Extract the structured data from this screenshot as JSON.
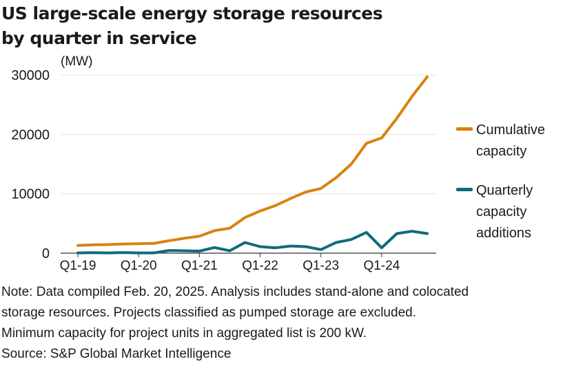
{
  "title": [
    "US large-scale energy storage resources",
    "by quarter in service"
  ],
  "unit": "(MW)",
  "colors": {
    "cumulative": "#d9820f",
    "quarterly": "#0f6b7a",
    "grid": "#e3e3e3",
    "axis": "#333333"
  },
  "chart_data": {
    "type": "line",
    "title": "US large-scale energy storage resources by quarter in service",
    "ylabel": "(MW)",
    "ylim": [
      0,
      30000
    ],
    "yticks": [
      0,
      10000,
      20000,
      30000
    ],
    "grid": "horizontal",
    "legend_position": "right",
    "x": [
      "Q1-19",
      "Q2-19",
      "Q3-19",
      "Q4-19",
      "Q1-20",
      "Q2-20",
      "Q3-20",
      "Q4-20",
      "Q1-21",
      "Q2-21",
      "Q3-21",
      "Q4-21",
      "Q1-22",
      "Q2-22",
      "Q3-22",
      "Q4-22",
      "Q1-23",
      "Q2-23",
      "Q3-23",
      "Q4-23",
      "Q1-24",
      "Q2-24",
      "Q3-24",
      "Q4-24"
    ],
    "xtick_labels": [
      "Q1-19",
      "Q1-20",
      "Q1-21",
      "Q1-22",
      "Q1-23",
      "Q1-24"
    ],
    "series": [
      {
        "name": "Cumulative capacity",
        "values": [
          1300,
          1400,
          1450,
          1550,
          1600,
          1650,
          2100,
          2500,
          2850,
          3800,
          4200,
          6000,
          7100,
          8000,
          9200,
          10300,
          10900,
          12700,
          15000,
          18500,
          19400,
          22700,
          26400,
          29700
        ]
      },
      {
        "name": "Quarterly capacity additions",
        "values": [
          50,
          80,
          50,
          100,
          50,
          50,
          450,
          400,
          350,
          950,
          400,
          1800,
          1100,
          900,
          1200,
          1100,
          600,
          1800,
          2300,
          3500,
          900,
          3300,
          3700,
          3300
        ]
      }
    ]
  },
  "legend": [
    {
      "lines": [
        "Cumulative",
        "capacity"
      ]
    },
    {
      "lines": [
        "Quarterly",
        "capacity",
        "additions"
      ]
    }
  ],
  "notes": [
    "Note: Data compiled Feb. 20, 2025. Analysis includes stand-alone and colocated",
    "storage resources. Projects classified as pumped storage are excluded.",
    "Minimum capacity for project units in aggregated list is 200 kW.",
    "Source: S&P Global Market Intelligence"
  ]
}
